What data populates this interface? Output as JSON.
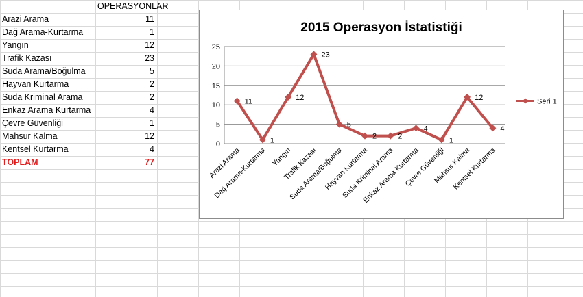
{
  "sheet": {
    "column_header": "OPERASYONLAR",
    "rows": [
      {
        "label": "Arazi Arama",
        "value": "11"
      },
      {
        "label": "Dağ Arama-Kurtarma",
        "value": "1"
      },
      {
        "label": "Yangın",
        "value": "12"
      },
      {
        "label": "Trafik Kazası",
        "value": "23"
      },
      {
        "label": "Suda Arama/Boğulma",
        "value": "5"
      },
      {
        "label": "Hayvan Kurtarma",
        "value": "2"
      },
      {
        "label": "Suda Kriminal Arama",
        "value": "2"
      },
      {
        "label": "Enkaz Arama Kurtarma",
        "value": "4"
      },
      {
        "label": "Çevre Güvenliği",
        "value": "1"
      },
      {
        "label": "Mahsur Kalma",
        "value": "12"
      },
      {
        "label": "Kentsel Kurtarma",
        "value": "4"
      }
    ],
    "total": {
      "label": "TOPLAM",
      "value": "77"
    },
    "total_color": "#e31b1b",
    "gridline_color": "#d9d9d9"
  },
  "chart_data": {
    "type": "line",
    "title": "2015 Operasyon İstatistiği",
    "xlabel": "",
    "ylabel": "",
    "categories": [
      "Arazi Arama",
      "Dağ Arama-Kurtarma",
      "Yangın",
      "Trafik Kazası",
      "Suda Arama/Boğulma",
      "Hayvan Kurtarma",
      "Suda Kriminal Arama",
      "Enkaz Arama Kurtarma",
      "Çevre Güvenliği",
      "Mahsur Kalma",
      "Kentsel Kurtarma"
    ],
    "series": [
      {
        "name": "Seri 1",
        "values": [
          11,
          1,
          12,
          23,
          5,
          2,
          2,
          4,
          1,
          12,
          4
        ],
        "color": "#c0504d"
      }
    ],
    "ylim": [
      0,
      25
    ],
    "yticks": [
      0,
      5,
      10,
      15,
      20,
      25
    ],
    "grid": true,
    "data_labels": true,
    "legend_position": "right"
  }
}
